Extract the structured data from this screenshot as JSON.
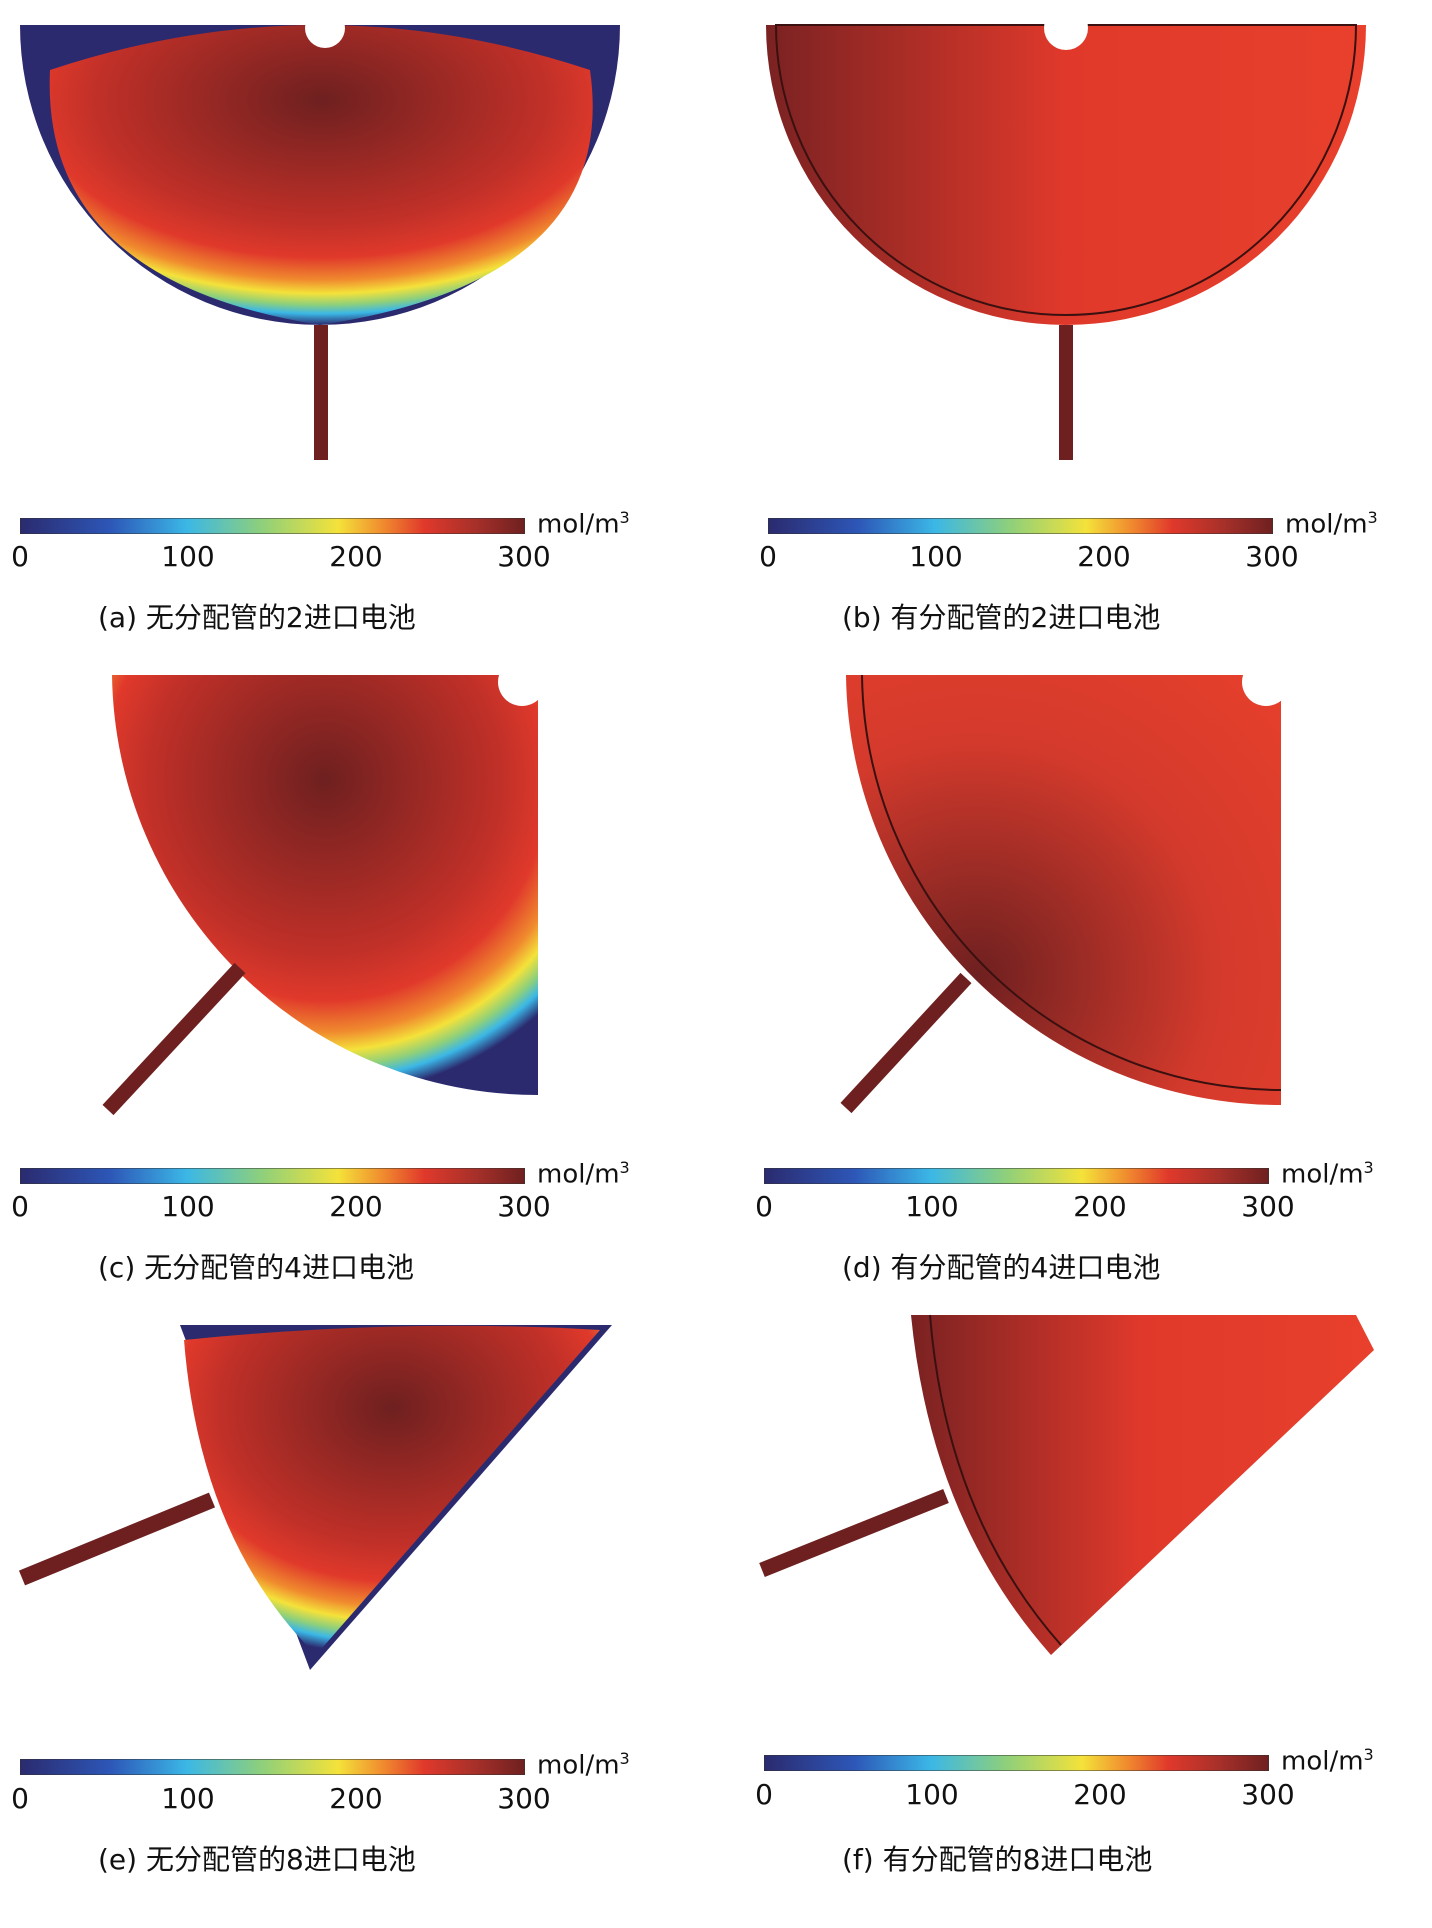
{
  "colorbar": {
    "unit_main": "mol/m",
    "unit_sup": "3",
    "ticks": [
      "0",
      "100",
      "200",
      "300"
    ],
    "colors": [
      "#2b2a6e",
      "#2d57b8",
      "#3bb7e6",
      "#8fd07a",
      "#f4e23a",
      "#f08a2e",
      "#e0392b",
      "#a8302a",
      "#6e2020"
    ]
  },
  "panels": [
    {
      "id": "a",
      "caption": "(a) 无分配管的2进口电池"
    },
    {
      "id": "b",
      "caption": "(b) 有分配管的2进口电池"
    },
    {
      "id": "c",
      "caption": "(c) 无分配管的4进口电池"
    },
    {
      "id": "d",
      "caption": "(d) 有分配管的4进口电池"
    },
    {
      "id": "e",
      "caption": "(e) 无分配管的8进口电池"
    },
    {
      "id": "f",
      "caption": "(f) 有分配管的8进口电池"
    }
  ]
}
